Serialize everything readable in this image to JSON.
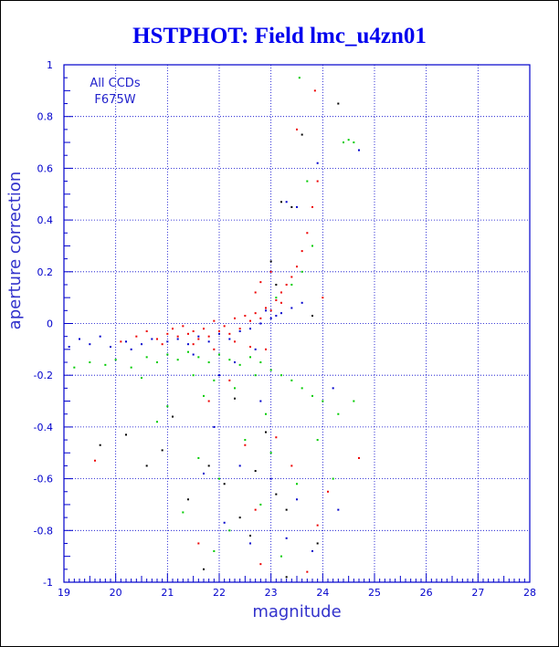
{
  "chart_data": {
    "type": "scatter",
    "title": "HSTPHOT: Field lmc_u4zn01",
    "xlabel": "magnitude",
    "ylabel": "aperture correction",
    "xlim": [
      19,
      28
    ],
    "ylim": [
      -1,
      1
    ],
    "x_ticks": [
      19,
      20,
      21,
      22,
      23,
      24,
      25,
      26,
      27,
      28
    ],
    "y_ticks": [
      -1,
      -0.8,
      -0.6,
      -0.4,
      -0.2,
      0,
      0.2,
      0.4,
      0.6,
      0.8,
      1
    ],
    "x_tick_labels": [
      "19",
      "20",
      "21",
      "22",
      "23",
      "24",
      "25",
      "26",
      "27",
      "28"
    ],
    "y_tick_labels": [
      "-1",
      "-0.8",
      "-0.6",
      "-0.4",
      "-0.2",
      "0",
      "0.2",
      "0.4",
      "0.6",
      "0.8",
      "1"
    ],
    "grid": true,
    "annotations": [
      "All CCDs",
      "F675W"
    ],
    "colors": {
      "red": "#ee0000",
      "blue": "#0000cc",
      "green": "#00cc00",
      "black": "#000000",
      "axis": "#0000cc",
      "grid": "#0000cc"
    },
    "series": [
      {
        "color": "red",
        "points": [
          [
            20.1,
            -0.07
          ],
          [
            20.4,
            -0.05
          ],
          [
            20.6,
            -0.03
          ],
          [
            20.8,
            -0.06
          ],
          [
            21.0,
            -0.04
          ],
          [
            21.1,
            -0.02
          ],
          [
            21.2,
            -0.05
          ],
          [
            21.3,
            -0.01
          ],
          [
            21.4,
            -0.04
          ],
          [
            21.5,
            -0.03
          ],
          [
            21.6,
            -0.06
          ],
          [
            21.7,
            -0.02
          ],
          [
            21.8,
            -0.05
          ],
          [
            21.9,
            0.01
          ],
          [
            22.0,
            -0.03
          ],
          [
            22.1,
            -0.01
          ],
          [
            22.2,
            -0.04
          ],
          [
            22.3,
            0.02
          ],
          [
            22.4,
            -0.02
          ],
          [
            22.5,
            0.03
          ],
          [
            22.6,
            0.01
          ],
          [
            22.7,
            0.04
          ],
          [
            22.8,
            0.02
          ],
          [
            22.9,
            0.06
          ],
          [
            23.0,
            0.05
          ],
          [
            23.1,
            0.09
          ],
          [
            23.2,
            0.12
          ],
          [
            23.3,
            0.15
          ],
          [
            23.4,
            0.18
          ],
          [
            23.5,
            0.22
          ],
          [
            23.6,
            0.28
          ],
          [
            23.7,
            0.35
          ],
          [
            23.8,
            0.45
          ],
          [
            23.9,
            0.55
          ],
          [
            23.85,
            0.9
          ],
          [
            23.5,
            0.75
          ],
          [
            22.7,
            0.12
          ],
          [
            22.8,
            0.16
          ],
          [
            23.0,
            0.2
          ],
          [
            23.2,
            0.08
          ],
          [
            21.5,
            -0.08
          ],
          [
            21.9,
            -0.1
          ],
          [
            22.3,
            -0.07
          ],
          [
            22.6,
            -0.09
          ],
          [
            20.9,
            -0.08
          ],
          [
            19.6,
            -0.53
          ],
          [
            23.1,
            -0.44
          ],
          [
            22.7,
            -0.72
          ],
          [
            23.9,
            -0.78
          ],
          [
            24.7,
            -0.52
          ],
          [
            21.6,
            -0.85
          ],
          [
            22.8,
            -0.93
          ],
          [
            23.7,
            -0.96
          ],
          [
            24.1,
            -0.65
          ],
          [
            22.2,
            -0.22
          ],
          [
            21.8,
            -0.3
          ],
          [
            22.5,
            -0.47
          ],
          [
            23.4,
            -0.55
          ],
          [
            24.0,
            0.1
          ],
          [
            22.9,
            -0.1
          ]
        ]
      },
      {
        "color": "blue",
        "points": [
          [
            19.1,
            -0.09
          ],
          [
            19.3,
            -0.06
          ],
          [
            19.5,
            -0.08
          ],
          [
            19.7,
            -0.05
          ],
          [
            19.9,
            -0.09
          ],
          [
            20.2,
            -0.07
          ],
          [
            20.5,
            -0.08
          ],
          [
            20.7,
            -0.06
          ],
          [
            21.0,
            -0.07
          ],
          [
            21.2,
            -0.06
          ],
          [
            21.4,
            -0.08
          ],
          [
            21.6,
            -0.05
          ],
          [
            21.8,
            -0.07
          ],
          [
            22.0,
            -0.04
          ],
          [
            22.2,
            -0.06
          ],
          [
            22.4,
            -0.03
          ],
          [
            22.6,
            -0.02
          ],
          [
            22.8,
            0.0
          ],
          [
            23.0,
            0.02
          ],
          [
            23.2,
            0.04
          ],
          [
            23.4,
            0.06
          ],
          [
            23.6,
            0.08
          ],
          [
            23.5,
            0.45
          ],
          [
            23.3,
            0.47
          ],
          [
            23.9,
            0.62
          ],
          [
            24.7,
            0.67
          ],
          [
            23.1,
            0.03
          ],
          [
            22.9,
            0.05
          ],
          [
            22.7,
            -0.1
          ],
          [
            22.3,
            -0.15
          ],
          [
            21.9,
            -0.4
          ],
          [
            22.4,
            -0.55
          ],
          [
            23.0,
            -0.6
          ],
          [
            23.5,
            -0.68
          ],
          [
            21.7,
            -0.58
          ],
          [
            22.1,
            -0.77
          ],
          [
            23.3,
            -0.83
          ],
          [
            24.3,
            -0.72
          ],
          [
            22.6,
            -0.85
          ],
          [
            23.8,
            -0.88
          ],
          [
            22.0,
            -0.2
          ],
          [
            21.5,
            -0.12
          ],
          [
            20.3,
            -0.1
          ],
          [
            24.2,
            -0.25
          ],
          [
            22.8,
            -0.3
          ]
        ]
      },
      {
        "color": "green",
        "points": [
          [
            19.2,
            -0.17
          ],
          [
            19.5,
            -0.15
          ],
          [
            19.8,
            -0.16
          ],
          [
            20.0,
            -0.14
          ],
          [
            20.3,
            -0.17
          ],
          [
            20.6,
            -0.13
          ],
          [
            20.8,
            -0.15
          ],
          [
            21.0,
            -0.12
          ],
          [
            21.2,
            -0.14
          ],
          [
            21.4,
            -0.11
          ],
          [
            21.6,
            -0.13
          ],
          [
            21.8,
            -0.15
          ],
          [
            22.0,
            -0.12
          ],
          [
            22.2,
            -0.14
          ],
          [
            22.4,
            -0.16
          ],
          [
            22.6,
            -0.13
          ],
          [
            22.8,
            -0.15
          ],
          [
            23.0,
            -0.18
          ],
          [
            23.2,
            -0.2
          ],
          [
            23.4,
            -0.22
          ],
          [
            23.6,
            -0.25
          ],
          [
            23.8,
            -0.28
          ],
          [
            24.0,
            -0.3
          ],
          [
            24.3,
            -0.35
          ],
          [
            24.6,
            -0.3
          ],
          [
            21.5,
            -0.2
          ],
          [
            21.9,
            -0.22
          ],
          [
            22.3,
            -0.25
          ],
          [
            22.7,
            -0.2
          ],
          [
            23.1,
            0.1
          ],
          [
            23.4,
            0.15
          ],
          [
            23.6,
            0.2
          ],
          [
            23.8,
            0.3
          ],
          [
            23.7,
            0.55
          ],
          [
            23.55,
            0.95
          ],
          [
            24.4,
            0.7
          ],
          [
            24.5,
            0.71
          ],
          [
            24.6,
            0.7
          ],
          [
            21.0,
            -0.32
          ],
          [
            21.6,
            -0.52
          ],
          [
            22.0,
            -0.6
          ],
          [
            22.5,
            -0.45
          ],
          [
            23.0,
            -0.5
          ],
          [
            23.5,
            -0.62
          ],
          [
            22.2,
            -0.8
          ],
          [
            21.9,
            -0.88
          ],
          [
            23.2,
            -0.9
          ],
          [
            24.2,
            -0.6
          ],
          [
            20.8,
            -0.38
          ],
          [
            21.3,
            -0.73
          ],
          [
            22.8,
            -0.7
          ],
          [
            23.9,
            -0.45
          ],
          [
            21.7,
            -0.28
          ],
          [
            22.9,
            -0.35
          ],
          [
            20.5,
            -0.21
          ]
        ]
      },
      {
        "color": "black",
        "points": [
          [
            19.7,
            -0.47
          ],
          [
            20.2,
            -0.43
          ],
          [
            20.6,
            -0.55
          ],
          [
            20.9,
            -0.49
          ],
          [
            21.8,
            -0.55
          ],
          [
            22.9,
            -0.42
          ],
          [
            23.1,
            -0.66
          ],
          [
            23.3,
            -0.72
          ],
          [
            23.4,
            0.45
          ],
          [
            23.2,
            0.47
          ],
          [
            23.0,
            0.24
          ],
          [
            23.1,
            0.15
          ],
          [
            23.8,
            0.03
          ],
          [
            23.6,
            0.73
          ],
          [
            24.3,
            0.85
          ],
          [
            21.7,
            -0.95
          ],
          [
            22.4,
            -0.75
          ],
          [
            22.6,
            -0.82
          ],
          [
            23.3,
            -0.98
          ],
          [
            23.9,
            -0.85
          ],
          [
            21.4,
            -0.68
          ],
          [
            22.1,
            -0.62
          ],
          [
            22.7,
            -0.57
          ],
          [
            21.1,
            -0.36
          ],
          [
            22.3,
            -0.29
          ]
        ]
      }
    ]
  }
}
